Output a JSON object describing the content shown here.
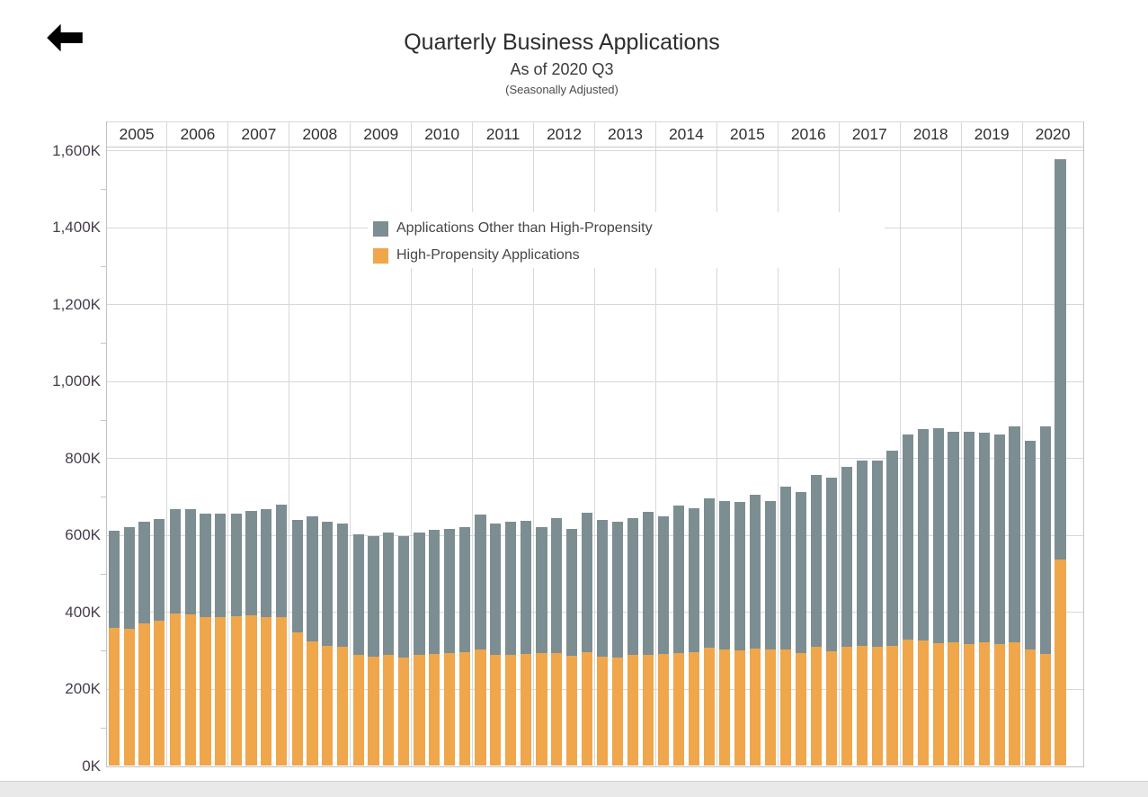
{
  "back_button": {
    "icon": "left-arrow"
  },
  "legend": {
    "items": [
      {
        "label": "Applications Other than High-Propensity",
        "color": "#7c8e92"
      },
      {
        "label": "High-Propensity Applications",
        "color": "#f0a64b"
      }
    ]
  },
  "chart_data": {
    "type": "bar",
    "stacked": true,
    "title": "Quarterly Business Applications",
    "subtitle": "As of 2020 Q3",
    "note": "(Seasonally Adjusted)",
    "unit": "applications, thousands (K)",
    "grid": true,
    "legend_position": "inside top-left of plot",
    "ylim": [
      0,
      1609
    ],
    "y_tick_step_K": 200,
    "y_tick_labels": [
      "0K",
      "200K",
      "400K",
      "600K",
      "800K",
      "1,000K",
      "1,200K",
      "1,400K",
      "1,600K"
    ],
    "x_axis": "years 2005-2020, four quarterly bars per year (2020 has Q1-Q3 only)",
    "series_colors": {
      "high_propensity": "#f0a64b",
      "other": "#7c8e92"
    },
    "groups": [
      {
        "year": "2005",
        "quarters": [
          "Q1",
          "Q2",
          "Q3",
          "Q4"
        ],
        "high_propensity": [
          359,
          357,
          370,
          378
        ],
        "other": [
          253,
          263,
          264,
          265
        ],
        "total": [
          612,
          620,
          634,
          643
        ]
      },
      {
        "year": "2006",
        "quarters": [
          "Q1",
          "Q2",
          "Q3",
          "Q4"
        ],
        "high_propensity": [
          397,
          394,
          386,
          388
        ],
        "other": [
          272,
          275,
          269,
          267
        ],
        "total": [
          669,
          669,
          655,
          655
        ]
      },
      {
        "year": "2007",
        "quarters": [
          "Q1",
          "Q2",
          "Q3",
          "Q4"
        ],
        "high_propensity": [
          390,
          392,
          388,
          386
        ],
        "other": [
          265,
          272,
          281,
          293
        ],
        "total": [
          655,
          664,
          669,
          679
        ]
      },
      {
        "year": "2008",
        "quarters": [
          "Q1",
          "Q2",
          "Q3",
          "Q4"
        ],
        "high_propensity": [
          347,
          324,
          312,
          310
        ],
        "other": [
          292,
          325,
          323,
          321
        ],
        "total": [
          639,
          649,
          635,
          631
        ]
      },
      {
        "year": "2009",
        "quarters": [
          "Q1",
          "Q2",
          "Q3",
          "Q4"
        ],
        "high_propensity": [
          288,
          285,
          290,
          283
        ],
        "other": [
          314,
          313,
          318,
          315
        ],
        "total": [
          602,
          598,
          608,
          598
        ]
      },
      {
        "year": "2010",
        "quarters": [
          "Q1",
          "Q2",
          "Q3",
          "Q4"
        ],
        "high_propensity": [
          290,
          292,
          294,
          295
        ],
        "other": [
          317,
          321,
          323,
          327
        ],
        "total": [
          607,
          613,
          617,
          622
        ]
      },
      {
        "year": "2011",
        "quarters": [
          "Q1",
          "Q2",
          "Q3",
          "Q4"
        ],
        "high_propensity": [
          304,
          290,
          290,
          292
        ],
        "other": [
          349,
          341,
          344,
          345
        ],
        "total": [
          653,
          631,
          634,
          637
        ]
      },
      {
        "year": "2012",
        "quarters": [
          "Q1",
          "Q2",
          "Q3",
          "Q4"
        ],
        "high_propensity": [
          293,
          294,
          286,
          297
        ],
        "other": [
          327,
          351,
          330,
          362
        ],
        "total": [
          620,
          645,
          616,
          659
        ]
      },
      {
        "year": "2013",
        "quarters": [
          "Q1",
          "Q2",
          "Q3",
          "Q4"
        ],
        "high_propensity": [
          284,
          283,
          288,
          290
        ],
        "other": [
          355,
          352,
          357,
          370
        ],
        "total": [
          639,
          635,
          645,
          660
        ]
      },
      {
        "year": "2014",
        "quarters": [
          "Q1",
          "Q2",
          "Q3",
          "Q4"
        ],
        "high_propensity": [
          292,
          294,
          295,
          308
        ],
        "other": [
          358,
          384,
          375,
          387
        ],
        "total": [
          650,
          678,
          670,
          695
        ]
      },
      {
        "year": "2015",
        "quarters": [
          "Q1",
          "Q2",
          "Q3",
          "Q4"
        ],
        "high_propensity": [
          302,
          300,
          305,
          303
        ],
        "other": [
          388,
          386,
          401,
          387
        ],
        "total": [
          690,
          686,
          706,
          690
        ]
      },
      {
        "year": "2016",
        "quarters": [
          "Q1",
          "Q2",
          "Q3",
          "Q4"
        ],
        "high_propensity": [
          304,
          293,
          311,
          299
        ],
        "other": [
          422,
          419,
          446,
          451
        ],
        "total": [
          726,
          712,
          757,
          750
        ]
      },
      {
        "year": "2017",
        "quarters": [
          "Q1",
          "Q2",
          "Q3",
          "Q4"
        ],
        "high_propensity": [
          310,
          312,
          309,
          312
        ],
        "other": [
          467,
          482,
          484,
          508
        ],
        "total": [
          777,
          794,
          793,
          820
        ]
      },
      {
        "year": "2018",
        "quarters": [
          "Q1",
          "Q2",
          "Q3",
          "Q4"
        ],
        "high_propensity": [
          328,
          327,
          319,
          321
        ],
        "other": [
          535,
          550,
          560,
          547
        ],
        "total": [
          863,
          877,
          879,
          868
        ]
      },
      {
        "year": "2019",
        "quarters": [
          "Q1",
          "Q2",
          "Q3",
          "Q4"
        ],
        "high_propensity": [
          318,
          322,
          316,
          322
        ],
        "other": [
          550,
          544,
          547,
          562
        ],
        "total": [
          868,
          866,
          863,
          884
        ]
      },
      {
        "year": "2020",
        "quarters": [
          "Q1",
          "Q2",
          "Q3"
        ],
        "high_propensity": [
          304,
          292,
          536
        ],
        "other": [
          541,
          592,
          1042
        ],
        "total": [
          845,
          884,
          1578
        ]
      }
    ]
  }
}
